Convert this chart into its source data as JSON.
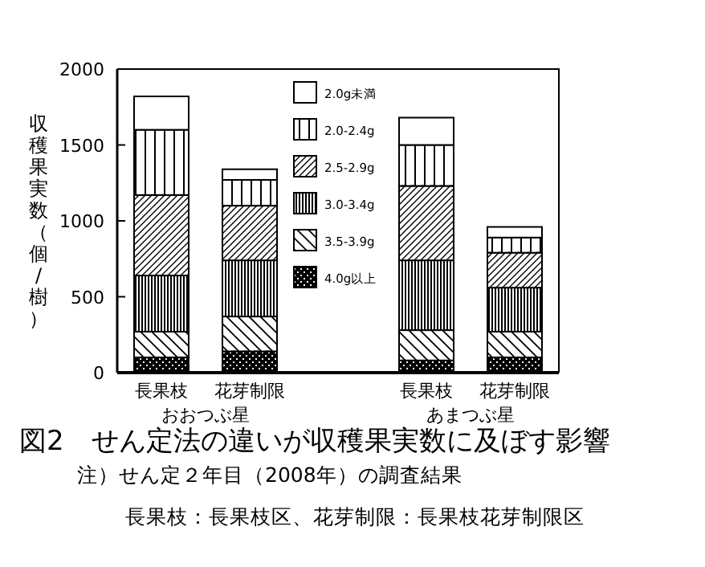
{
  "chart_data": {
    "type": "bar",
    "stacked": true,
    "title": "図2　せん定法の違いが収穫果実数に及ぼす影響",
    "ylabel": "収穫果実数（個/樹）",
    "categories": [
      "長果枝",
      "花芽制限",
      "長果枝",
      "花芽制限"
    ],
    "ylim": [
      0,
      2000
    ],
    "yticks": [
      0,
      500,
      1000,
      1500,
      2000
    ],
    "legend": "top",
    "series": [
      {
        "name": "4.0g以上",
        "color": "#000000",
        "values": [
          100,
          140,
          80,
          100
        ]
      },
      {
        "name": "3.5-3.9g",
        "color": "#000000",
        "values": [
          170,
          230,
          200,
          170
        ]
      },
      {
        "name": "3.0-3.4g",
        "color": "#000000",
        "values": [
          370,
          370,
          460,
          290
        ]
      },
      {
        "name": "2.5-2.9g",
        "color": "#000000",
        "values": [
          530,
          360,
          490,
          230
        ]
      },
      {
        "name": "2.0-2.4g",
        "color": "#000000",
        "values": [
          430,
          170,
          270,
          100
        ]
      },
      {
        "name": "2.0g未満",
        "color": "#ffffff",
        "values": [
          220,
          70,
          180,
          70
        ]
      }
    ],
    "annotations": [
      "おおつぶ星",
      "あまつぶ星",
      "注）せん定２年目（2008年）の調査結果",
      "長果枝：長果枝区、花芽制限：長果枝花芽制限区"
    ]
  }
}
